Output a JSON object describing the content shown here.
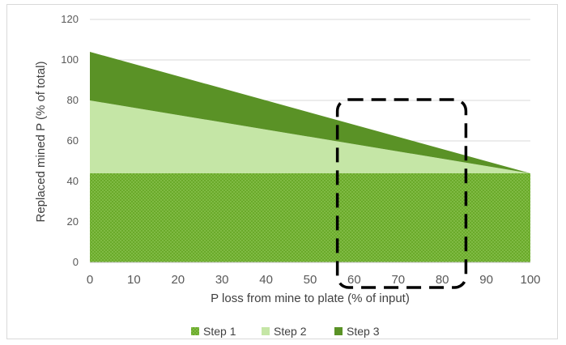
{
  "chart_data": {
    "type": "area",
    "title": "",
    "xlabel": "P loss from mine to plate (% of input)",
    "ylabel": "Replaced mined P (% of total)",
    "x": [
      0,
      100
    ],
    "xlim": [
      0,
      100
    ],
    "ylim": [
      0,
      120
    ],
    "xticks": [
      0,
      10,
      20,
      30,
      40,
      50,
      60,
      70,
      80,
      90,
      100
    ],
    "yticks": [
      0,
      20,
      40,
      60,
      80,
      100,
      120
    ],
    "grid": "horizontal",
    "legend_position": "bottom",
    "series": [
      {
        "name": "Step 1",
        "values": [
          44,
          44
        ],
        "color": "#6aaa2a",
        "pattern": "dotted"
      },
      {
        "name": "Step 2",
        "values": [
          80,
          44
        ],
        "color": "#c5e6a6"
      },
      {
        "name": "Step 3",
        "values": [
          104,
          44
        ],
        "color": "#5a9226"
      }
    ],
    "annotation": {
      "shape": "dashed-rounded-rectangle",
      "x_range": [
        56,
        85
      ],
      "color": "#000000"
    }
  }
}
